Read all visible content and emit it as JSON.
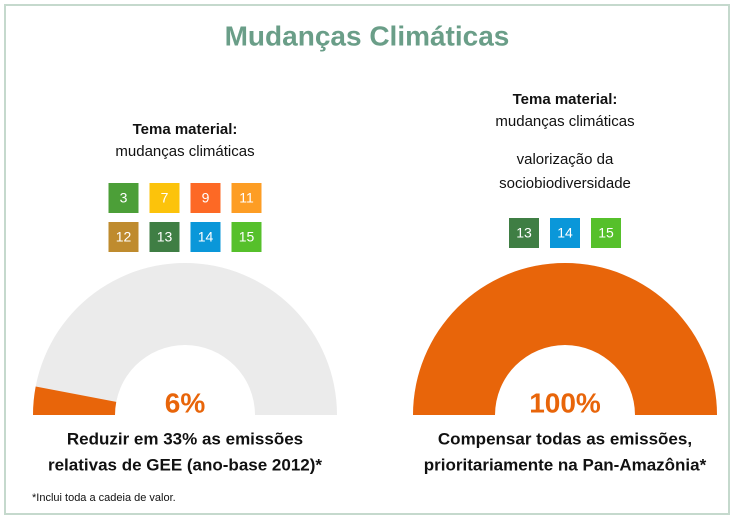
{
  "title": "Mudanças Climáticas",
  "footnote": "*Inclui toda a cadeia de valor.",
  "chart_data": [
    {
      "type": "gauge",
      "header": "Tema material:",
      "subheader": [
        "mudanças climáticas"
      ],
      "badges": [
        "3",
        "7",
        "9",
        "11",
        "12",
        "13",
        "14",
        "15"
      ],
      "badge_colors": [
        "#4c9f38",
        "#fcc30b",
        "#fd6925",
        "#fd9d24",
        "#bf8b2e",
        "#3f7e44",
        "#0a97d9",
        "#56c02b"
      ],
      "values": [
        6
      ],
      "value_labels": [
        "6%"
      ],
      "ylim": [
        0,
        100
      ],
      "color": "#e8650a",
      "track_color": "#ebebeb",
      "caption": [
        "Reduzir em 33% as emissões",
        "relativas de GEE (ano-base 2012)*"
      ]
    },
    {
      "type": "gauge",
      "header": "Tema material:",
      "subheader": [
        "mudanças climáticas",
        "valorização da",
        "sociobiodiversidade"
      ],
      "badges": [
        "13",
        "14",
        "15"
      ],
      "badge_colors": [
        "#3f7e44",
        "#0a97d9",
        "#56c02b"
      ],
      "values": [
        100
      ],
      "value_labels": [
        "100%"
      ],
      "ylim": [
        0,
        100
      ],
      "color": "#e8650a",
      "track_color": "#ebebeb",
      "caption": [
        "Compensar todas as emissões,",
        "prioritariamente na Pan-Amazônia*"
      ]
    }
  ]
}
